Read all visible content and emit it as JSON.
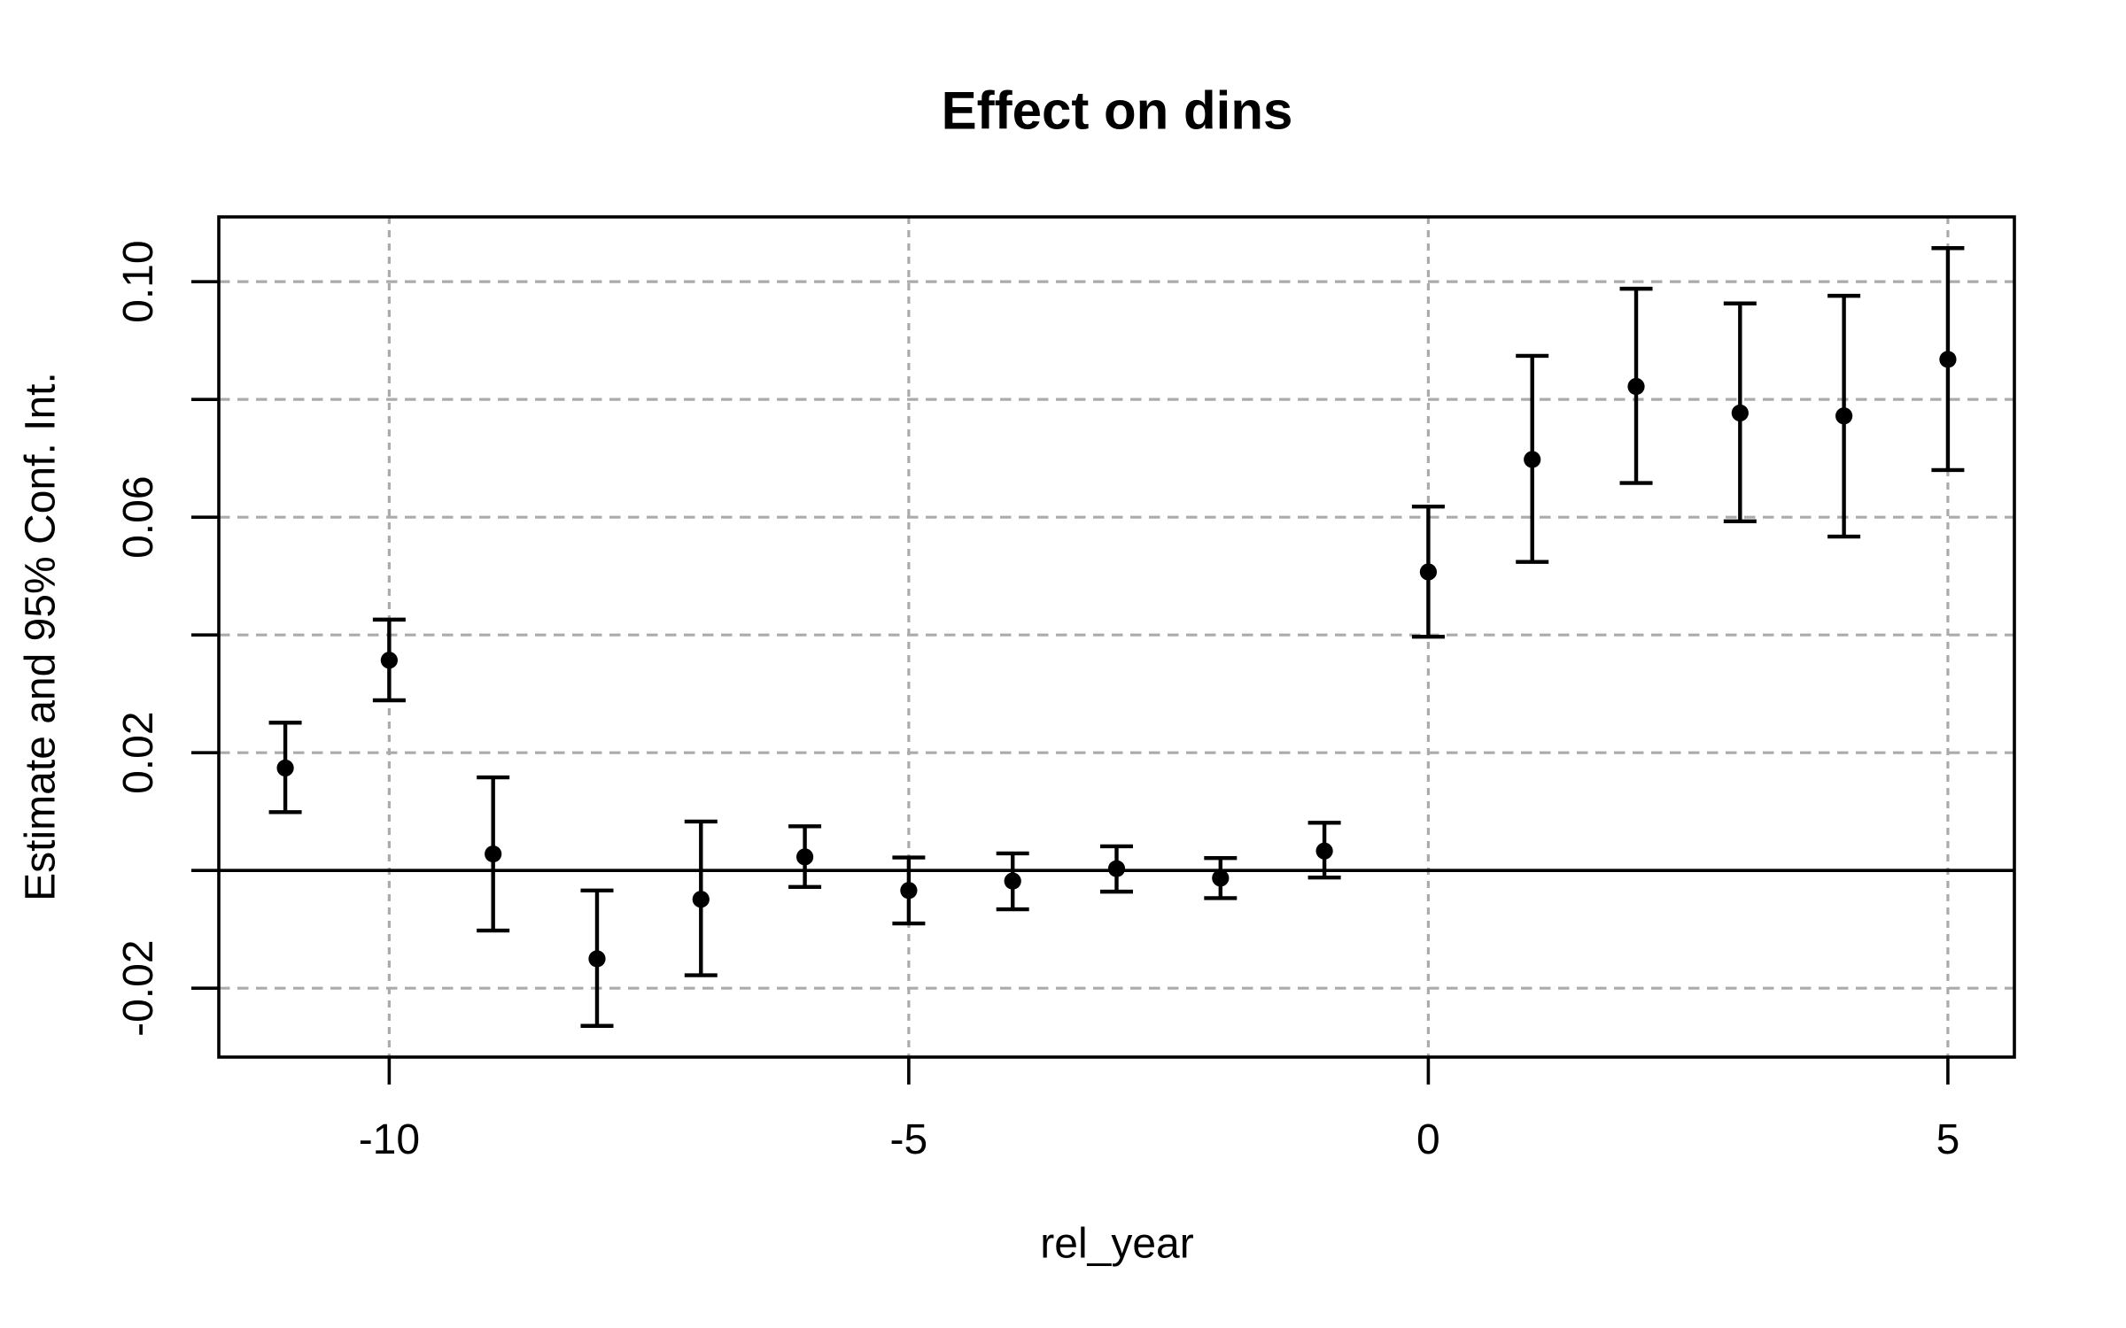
{
  "title": "Effect on dins",
  "x_axis": {
    "label": "rel_year",
    "tick_values": [
      -10,
      -5,
      0,
      5
    ],
    "tick_labels": [
      "-10",
      "-5",
      "0",
      "5"
    ]
  },
  "y_axis": {
    "label": "Estimate and 95% Conf. Int.",
    "tick_values": [
      -0.02,
      0,
      0.02,
      0.04,
      0.06,
      0.08,
      0.1
    ],
    "labeled_tick_values": [
      -0.02,
      0.02,
      0.06,
      0.1
    ],
    "labeled_tick_labels": [
      "-0.02",
      "0.02",
      "0.06",
      "0.10"
    ]
  },
  "colors": {
    "background": "#ffffff",
    "axis": "#000000",
    "point": "#000000",
    "error_bar": "#000000",
    "grid": "#ababab",
    "zero_line": "#000000"
  },
  "chart_data": {
    "type": "scatter",
    "title": "Effect on dins",
    "xlabel": "rel_year",
    "ylabel": "Estimate and 95% Conf. Int.",
    "x": [
      -11,
      -10,
      -9,
      -8,
      -7,
      -6,
      -5,
      -4,
      -3,
      -2,
      -1,
      0,
      1,
      2,
      3,
      4,
      5
    ],
    "series": [
      {
        "name": "estimate",
        "values": [
          0.0174,
          0.0357,
          0.0028,
          -0.015,
          -0.0049,
          0.0023,
          -0.0034,
          -0.0018,
          0.0003,
          -0.0013,
          0.0033,
          0.0507,
          0.0698,
          0.0822,
          0.0777,
          0.0772,
          0.0868
        ]
      },
      {
        "name": "ci_low",
        "values": [
          0.0099,
          0.0289,
          -0.0102,
          -0.0264,
          -0.0178,
          -0.0028,
          -0.009,
          -0.0066,
          -0.0036,
          -0.0047,
          -0.0012,
          0.0397,
          0.0524,
          0.0658,
          0.0593,
          0.0567,
          0.068
        ]
      },
      {
        "name": "ci_high",
        "values": [
          0.0251,
          0.0426,
          0.0158,
          -0.0034,
          0.0083,
          0.0075,
          0.0022,
          0.0029,
          0.0041,
          0.0021,
          0.0081,
          0.0618,
          0.0874,
          0.0988,
          0.0963,
          0.0976,
          0.1057
        ]
      }
    ],
    "xlim": [
      -11.64,
      5.64
    ],
    "ylim": [
      -0.0317,
      0.111
    ],
    "grid": true,
    "grid_x_values": [
      -10,
      -5,
      0,
      5
    ],
    "grid_y_values": [
      -0.02,
      0,
      0.02,
      0.04,
      0.06,
      0.08,
      0.1
    ],
    "zero_reference_line": 0,
    "legend_position": "none"
  }
}
